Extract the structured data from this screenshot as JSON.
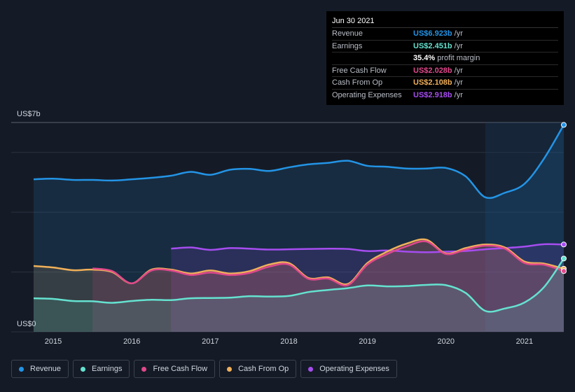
{
  "tooltip": {
    "date": "Jun 30 2021",
    "rows": [
      {
        "label": "Revenue",
        "value": "US$6.923b",
        "unit": "/yr",
        "color": "#2394e6"
      },
      {
        "label": "Earnings",
        "value": "US$2.451b",
        "unit": "/yr",
        "color": "#65e2d0"
      },
      {
        "label": "",
        "value": "35.4%",
        "unit": "profit margin",
        "color": "#ffffff"
      },
      {
        "label": "Free Cash Flow",
        "value": "US$2.028b",
        "unit": "/yr",
        "color": "#e0488b"
      },
      {
        "label": "Cash From Op",
        "value": "US$2.108b",
        "unit": "/yr",
        "color": "#f0b05a"
      },
      {
        "label": "Operating Expenses",
        "value": "US$2.918b",
        "unit": "/yr",
        "color": "#a64df0"
      }
    ]
  },
  "legend": [
    {
      "label": "Revenue",
      "color": "#2394e6"
    },
    {
      "label": "Earnings",
      "color": "#65e2d0"
    },
    {
      "label": "Free Cash Flow",
      "color": "#e0488b"
    },
    {
      "label": "Cash From Op",
      "color": "#f0b05a"
    },
    {
      "label": "Operating Expenses",
      "color": "#a64df0"
    }
  ],
  "chart_data": {
    "type": "area",
    "ylim": [
      0,
      7
    ],
    "ylabel_top": "US$7b",
    "ylabel_bottom": "US$0",
    "x_ticks": [
      2015,
      2016,
      2017,
      2018,
      2019,
      2020,
      2021
    ],
    "x_range": [
      2014.75,
      2021.5
    ],
    "highlight_from": 2020.5,
    "grid": true,
    "series": [
      {
        "name": "Revenue",
        "color": "#2394e6",
        "points": [
          [
            2014.75,
            5.1
          ],
          [
            2015.0,
            5.12
          ],
          [
            2015.25,
            5.08
          ],
          [
            2015.5,
            5.08
          ],
          [
            2015.75,
            5.06
          ],
          [
            2016.0,
            5.1
          ],
          [
            2016.25,
            5.15
          ],
          [
            2016.5,
            5.22
          ],
          [
            2016.75,
            5.35
          ],
          [
            2017.0,
            5.25
          ],
          [
            2017.25,
            5.42
          ],
          [
            2017.5,
            5.45
          ],
          [
            2017.75,
            5.38
          ],
          [
            2018.0,
            5.5
          ],
          [
            2018.25,
            5.6
          ],
          [
            2018.5,
            5.65
          ],
          [
            2018.75,
            5.72
          ],
          [
            2019.0,
            5.55
          ],
          [
            2019.25,
            5.52
          ],
          [
            2019.5,
            5.46
          ],
          [
            2019.75,
            5.46
          ],
          [
            2020.0,
            5.48
          ],
          [
            2020.25,
            5.2
          ],
          [
            2020.5,
            4.5
          ],
          [
            2020.75,
            4.65
          ],
          [
            2021.0,
            4.95
          ],
          [
            2021.25,
            5.8
          ],
          [
            2021.5,
            6.92
          ]
        ]
      },
      {
        "name": "Operating Expenses",
        "color": "#a64df0",
        "points": [
          [
            2016.5,
            2.78
          ],
          [
            2016.75,
            2.82
          ],
          [
            2017.0,
            2.74
          ],
          [
            2017.25,
            2.8
          ],
          [
            2017.5,
            2.78
          ],
          [
            2017.75,
            2.75
          ],
          [
            2018.0,
            2.76
          ],
          [
            2018.25,
            2.77
          ],
          [
            2018.5,
            2.78
          ],
          [
            2018.75,
            2.77
          ],
          [
            2019.0,
            2.7
          ],
          [
            2019.25,
            2.72
          ],
          [
            2019.5,
            2.68
          ],
          [
            2019.75,
            2.66
          ],
          [
            2020.0,
            2.68
          ],
          [
            2020.25,
            2.7
          ],
          [
            2020.5,
            2.76
          ],
          [
            2020.75,
            2.8
          ],
          [
            2021.0,
            2.85
          ],
          [
            2021.25,
            2.93
          ],
          [
            2021.5,
            2.92
          ]
        ]
      },
      {
        "name": "Cash From Op",
        "color": "#f0b05a",
        "points": [
          [
            2014.75,
            2.2
          ],
          [
            2015.0,
            2.15
          ],
          [
            2015.25,
            2.06
          ],
          [
            2015.5,
            2.08
          ],
          [
            2015.75,
            2.0
          ],
          [
            2016.0,
            1.62
          ],
          [
            2016.25,
            2.08
          ],
          [
            2016.5,
            2.08
          ],
          [
            2016.75,
            1.95
          ],
          [
            2017.0,
            2.05
          ],
          [
            2017.25,
            1.95
          ],
          [
            2017.5,
            2.03
          ],
          [
            2017.75,
            2.25
          ],
          [
            2018.0,
            2.3
          ],
          [
            2018.25,
            1.8
          ],
          [
            2018.5,
            1.82
          ],
          [
            2018.75,
            1.6
          ],
          [
            2019.0,
            2.3
          ],
          [
            2019.25,
            2.68
          ],
          [
            2019.5,
            2.95
          ],
          [
            2019.75,
            3.08
          ],
          [
            2020.0,
            2.62
          ],
          [
            2020.25,
            2.8
          ],
          [
            2020.5,
            2.92
          ],
          [
            2020.75,
            2.82
          ],
          [
            2021.0,
            2.35
          ],
          [
            2021.25,
            2.28
          ],
          [
            2021.5,
            2.11
          ]
        ]
      },
      {
        "name": "Free Cash Flow",
        "color": "#e0488b",
        "points": [
          [
            2015.5,
            2.12
          ],
          [
            2015.75,
            2.03
          ],
          [
            2016.0,
            1.62
          ],
          [
            2016.25,
            2.05
          ],
          [
            2016.5,
            2.05
          ],
          [
            2016.75,
            1.9
          ],
          [
            2017.0,
            1.98
          ],
          [
            2017.25,
            1.9
          ],
          [
            2017.5,
            1.97
          ],
          [
            2017.75,
            2.18
          ],
          [
            2018.0,
            2.25
          ],
          [
            2018.25,
            1.77
          ],
          [
            2018.5,
            1.78
          ],
          [
            2018.75,
            1.56
          ],
          [
            2019.0,
            2.25
          ],
          [
            2019.25,
            2.6
          ],
          [
            2019.5,
            2.86
          ],
          [
            2019.75,
            3.02
          ],
          [
            2020.0,
            2.6
          ],
          [
            2020.25,
            2.75
          ],
          [
            2020.5,
            2.88
          ],
          [
            2020.75,
            2.78
          ],
          [
            2021.0,
            2.3
          ],
          [
            2021.25,
            2.24
          ],
          [
            2021.5,
            2.03
          ]
        ]
      },
      {
        "name": "Earnings",
        "color": "#65e2d0",
        "points": [
          [
            2014.75,
            1.12
          ],
          [
            2015.0,
            1.1
          ],
          [
            2015.25,
            1.03
          ],
          [
            2015.5,
            1.02
          ],
          [
            2015.75,
            0.97
          ],
          [
            2016.0,
            1.03
          ],
          [
            2016.25,
            1.07
          ],
          [
            2016.5,
            1.06
          ],
          [
            2016.75,
            1.12
          ],
          [
            2017.0,
            1.13
          ],
          [
            2017.25,
            1.14
          ],
          [
            2017.5,
            1.19
          ],
          [
            2017.75,
            1.18
          ],
          [
            2018.0,
            1.2
          ],
          [
            2018.25,
            1.33
          ],
          [
            2018.5,
            1.4
          ],
          [
            2018.75,
            1.46
          ],
          [
            2019.0,
            1.55
          ],
          [
            2019.25,
            1.52
          ],
          [
            2019.5,
            1.53
          ],
          [
            2019.75,
            1.57
          ],
          [
            2020.0,
            1.56
          ],
          [
            2020.25,
            1.3
          ],
          [
            2020.5,
            0.7
          ],
          [
            2020.75,
            0.78
          ],
          [
            2021.0,
            0.98
          ],
          [
            2021.25,
            1.5
          ],
          [
            2021.5,
            2.45
          ]
        ]
      }
    ]
  }
}
